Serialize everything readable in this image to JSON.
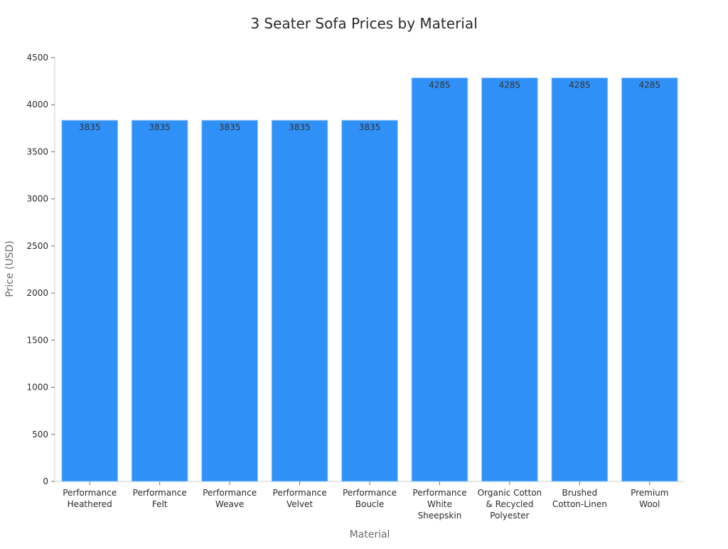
{
  "chart_data": {
    "type": "bar",
    "title": "3 Seater Sofa Prices by Material",
    "xlabel": "Material",
    "ylabel": "Price (USD)",
    "ylim": [
      0,
      4500
    ],
    "yticks": [
      0,
      500,
      1000,
      1500,
      2000,
      2500,
      3000,
      3500,
      4000,
      4500
    ],
    "grid": false,
    "bar_color": "#2f91f8",
    "bar_edge_color": "#9ecbfb",
    "categories": [
      [
        "Performance",
        "Heathered"
      ],
      [
        "Performance",
        "Felt"
      ],
      [
        "Performance",
        "Weave"
      ],
      [
        "Performance",
        "Velvet"
      ],
      [
        "Performance",
        "Boucle"
      ],
      [
        "Performance",
        "White",
        "Sheepskin"
      ],
      [
        "Organic Cotton",
        "& Recycled",
        "Polyester"
      ],
      [
        "Brushed",
        "Cotton-Linen"
      ],
      [
        "Premium",
        "Wool"
      ]
    ],
    "values": [
      3835,
      3835,
      3835,
      3835,
      3835,
      4285,
      4285,
      4285,
      4285
    ],
    "data_labels": [
      "3835",
      "3835",
      "3835",
      "3835",
      "3835",
      "4285",
      "4285",
      "4285",
      "4285"
    ]
  }
}
